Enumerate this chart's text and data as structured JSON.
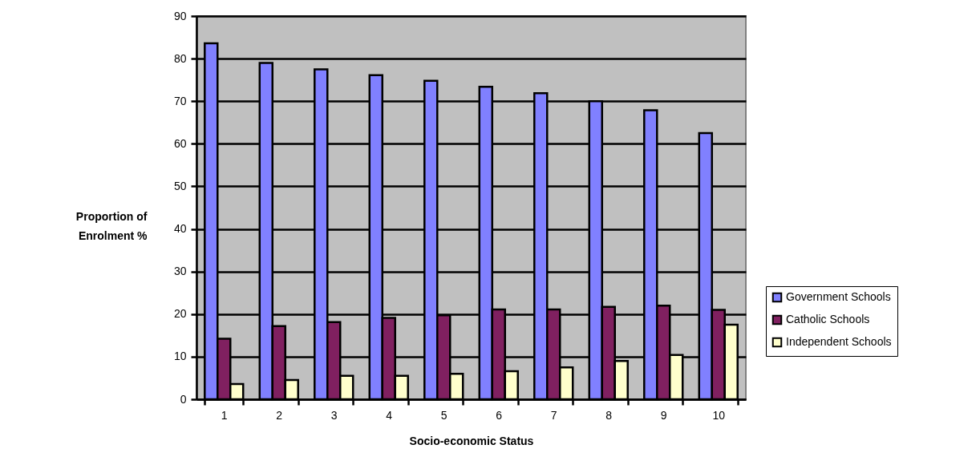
{
  "chart_data": {
    "type": "bar",
    "xlabel": "Socio-economic Status",
    "ylabel": "Proportion of\nEnrolment %",
    "categories": [
      "1",
      "2",
      "3",
      "4",
      "5",
      "6",
      "7",
      "8",
      "9",
      "10"
    ],
    "series": [
      {
        "name": "Government Schools",
        "color": "#8080ff",
        "values": [
          83.6,
          79,
          77.5,
          76.1,
          74.8,
          73.4,
          71.9,
          70,
          67.9,
          62.5
        ]
      },
      {
        "name": "Catholic Schools",
        "color": "#802060",
        "values": [
          14.2,
          17.2,
          18.1,
          19.1,
          19.7,
          21.1,
          21.1,
          21.7,
          22,
          21
        ]
      },
      {
        "name": "Independent Schools",
        "color": "#ffffcc",
        "values": [
          3.6,
          4.5,
          5.5,
          5.5,
          6,
          6.6,
          7.5,
          9,
          10.4,
          17.5
        ]
      }
    ],
    "ylim": [
      0,
      90
    ],
    "yticks": [
      0,
      10,
      20,
      30,
      40,
      50,
      60,
      70,
      80,
      90
    ],
    "grid": "y",
    "legend": "right"
  }
}
